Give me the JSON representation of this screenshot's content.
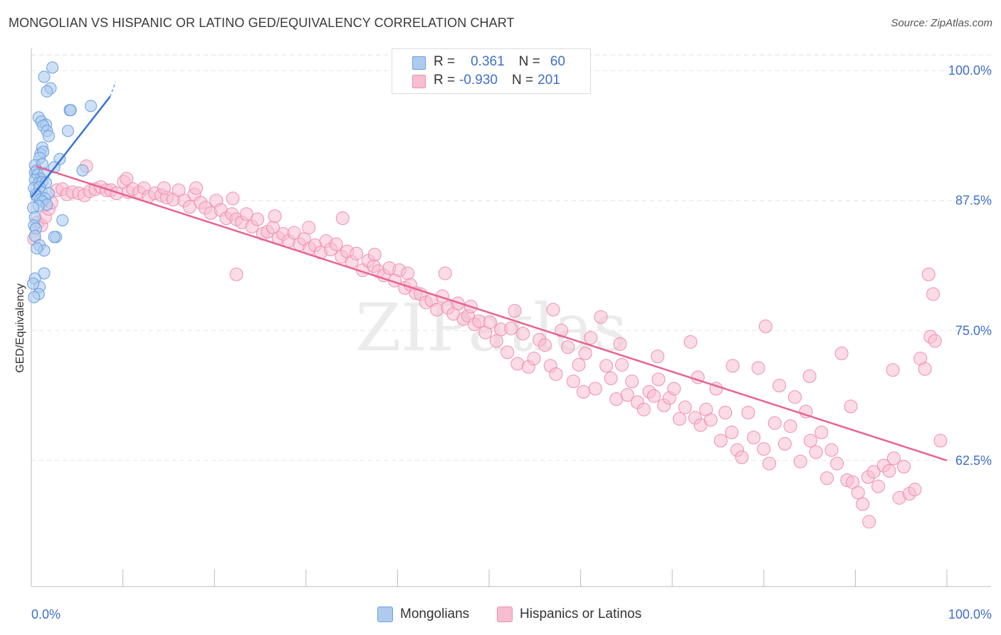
{
  "title": "MONGOLIAN VS HISPANIC OR LATINO GED/EQUIVALENCY CORRELATION CHART",
  "source": "Source: ZipAtlas.com",
  "watermark": "ZIPatlas",
  "colors": {
    "blue_fill": "#aecbef",
    "blue_stroke": "#6a9ee0",
    "blue_line": "#3574d4",
    "pink_fill": "#f7bdd0",
    "pink_stroke": "#ee8fb0",
    "pink_line": "#e8638f",
    "axis_text": "#3f6fc7",
    "grid": "#e3e3e3"
  },
  "legend": {
    "rows": [
      {
        "r_label": "R =",
        "r_value": "0.361",
        "n_label": "N =",
        "n_value": "60"
      },
      {
        "r_label": "R =",
        "r_value": "-0.930",
        "n_label": "N =",
        "n_value": "201"
      }
    ]
  },
  "bottom_legend": [
    "Mongolians",
    "Hispanics or Latinos"
  ],
  "chart_data": {
    "type": "scatter",
    "title": "MONGOLIAN VS HISPANIC OR LATINO GED/EQUIVALENCY CORRELATION CHART",
    "xlabel": "",
    "ylabel": "GED/Equivalency",
    "xlim": [
      0,
      100
    ],
    "ylim": [
      50.5,
      102
    ],
    "x_tick_labels": [
      "0.0%",
      "100.0%"
    ],
    "y_ticks": [
      62.5,
      75.0,
      87.5,
      100.0
    ],
    "y_tick_labels": [
      "62.5%",
      "75.0%",
      "87.5%",
      "100.0%"
    ],
    "grid": true,
    "series": [
      {
        "name": "Mongolians",
        "R": 0.361,
        "N": 60,
        "trend": {
          "x": [
            0,
            8.6
          ],
          "y": [
            87.8,
            97.5
          ],
          "dash_x": [
            8.6,
            9.2
          ],
          "dash_y": [
            97.5,
            98.9
          ]
        },
        "points": [
          [
            2.3,
            100.3
          ],
          [
            1.4,
            99.4
          ],
          [
            2.1,
            98.3
          ],
          [
            1.7,
            98.0
          ],
          [
            6.5,
            96.6
          ],
          [
            4.2,
            96.2
          ],
          [
            4.3,
            96.2
          ],
          [
            0.8,
            95.5
          ],
          [
            1.1,
            95.1
          ],
          [
            1.6,
            94.8
          ],
          [
            1.3,
            94.7
          ],
          [
            4.0,
            94.2
          ],
          [
            1.7,
            94.2
          ],
          [
            1.9,
            93.7
          ],
          [
            1.2,
            92.6
          ],
          [
            1.0,
            92.0
          ],
          [
            1.3,
            92.2
          ],
          [
            0.9,
            91.6
          ],
          [
            3.1,
            91.5
          ],
          [
            0.4,
            90.9
          ],
          [
            1.2,
            91.0
          ],
          [
            2.5,
            90.7
          ],
          [
            5.6,
            90.4
          ],
          [
            0.4,
            90.2
          ],
          [
            0.6,
            90.4
          ],
          [
            0.7,
            90.0
          ],
          [
            1.4,
            90.1
          ],
          [
            1.0,
            89.6
          ],
          [
            0.4,
            89.5
          ],
          [
            0.8,
            89.2
          ],
          [
            1.2,
            89.3
          ],
          [
            1.6,
            89.2
          ],
          [
            0.3,
            88.7
          ],
          [
            0.9,
            88.8
          ],
          [
            1.1,
            88.3
          ],
          [
            0.5,
            88.1
          ],
          [
            1.9,
            88.2
          ],
          [
            0.6,
            87.9
          ],
          [
            1.0,
            87.6
          ],
          [
            1.5,
            87.7
          ],
          [
            1.2,
            87.4
          ],
          [
            1.7,
            87.1
          ],
          [
            0.8,
            87.0
          ],
          [
            0.2,
            86.8
          ],
          [
            0.4,
            85.9
          ],
          [
            3.4,
            85.6
          ],
          [
            0.3,
            85.1
          ],
          [
            0.5,
            84.8
          ],
          [
            0.4,
            84.1
          ],
          [
            2.7,
            84.0
          ],
          [
            2.5,
            84.0
          ],
          [
            0.9,
            83.2
          ],
          [
            1.4,
            82.7
          ],
          [
            0.6,
            82.9
          ],
          [
            1.4,
            80.5
          ],
          [
            0.4,
            80.0
          ],
          [
            0.9,
            79.2
          ],
          [
            0.8,
            78.5
          ],
          [
            0.3,
            78.2
          ],
          [
            0.2,
            79.5
          ]
        ]
      },
      {
        "name": "Hispanics or Latinos",
        "R": -0.93,
        "N": 201,
        "trend": {
          "x": [
            0.5,
            100
          ],
          "y": [
            90.8,
            62.5
          ]
        },
        "points": [
          [
            0.3,
            83.8
          ],
          [
            0.7,
            85.4
          ],
          [
            1.1,
            85.1
          ],
          [
            1.5,
            85.9
          ],
          [
            1.9,
            86.7
          ],
          [
            2.2,
            87.3
          ],
          [
            2.8,
            88.5
          ],
          [
            3.4,
            88.6
          ],
          [
            3.9,
            88.1
          ],
          [
            4.5,
            88.3
          ],
          [
            5.2,
            88.2
          ],
          [
            5.8,
            88.0
          ],
          [
            6.4,
            88.4
          ],
          [
            7.0,
            88.6
          ],
          [
            7.6,
            88.8
          ],
          [
            8.2,
            88.5
          ],
          [
            8.7,
            88.5
          ],
          [
            9.3,
            88.2
          ],
          [
            10.1,
            89.3
          ],
          [
            10.6,
            88.3
          ],
          [
            11.1,
            88.6
          ],
          [
            11.8,
            88.3
          ],
          [
            12.3,
            88.7
          ],
          [
            12.8,
            87.9
          ],
          [
            13.5,
            88.2
          ],
          [
            14.2,
            88.0
          ],
          [
            14.8,
            87.8
          ],
          [
            15.5,
            87.6
          ],
          [
            16.1,
            88.5
          ],
          [
            16.7,
            87.5
          ],
          [
            17.3,
            86.9
          ],
          [
            17.8,
            88.1
          ],
          [
            18.5,
            87.3
          ],
          [
            19.0,
            86.8
          ],
          [
            19.6,
            86.3
          ],
          [
            20.2,
            87.5
          ],
          [
            20.7,
            86.6
          ],
          [
            21.3,
            85.8
          ],
          [
            21.9,
            86.2
          ],
          [
            22.4,
            85.7
          ],
          [
            23.0,
            85.4
          ],
          [
            23.5,
            86.2
          ],
          [
            24.1,
            85.0
          ],
          [
            24.7,
            85.7
          ],
          [
            25.3,
            84.3
          ],
          [
            25.8,
            84.5
          ],
          [
            26.4,
            84.9
          ],
          [
            27.0,
            83.9
          ],
          [
            27.5,
            84.3
          ],
          [
            28.1,
            83.6
          ],
          [
            28.7,
            84.4
          ],
          [
            29.3,
            83.3
          ],
          [
            29.8,
            83.8
          ],
          [
            30.4,
            82.9
          ],
          [
            31.0,
            83.2
          ],
          [
            31.6,
            82.5
          ],
          [
            32.2,
            83.6
          ],
          [
            32.7,
            82.8
          ],
          [
            33.3,
            83.3
          ],
          [
            33.9,
            82.1
          ],
          [
            34.5,
            82.6
          ],
          [
            35.0,
            81.6
          ],
          [
            35.5,
            82.4
          ],
          [
            36.2,
            80.8
          ],
          [
            36.8,
            81.7
          ],
          [
            37.4,
            81.2
          ],
          [
            37.9,
            80.7
          ],
          [
            38.5,
            80.3
          ],
          [
            39.1,
            81.0
          ],
          [
            39.7,
            79.8
          ],
          [
            40.2,
            80.8
          ],
          [
            40.8,
            79.1
          ],
          [
            41.4,
            79.4
          ],
          [
            42.0,
            78.6
          ],
          [
            42.5,
            78.5
          ],
          [
            43.1,
            77.7
          ],
          [
            43.7,
            77.9
          ],
          [
            44.3,
            77.0
          ],
          [
            44.9,
            78.3
          ],
          [
            45.5,
            77.2
          ],
          [
            46.1,
            76.6
          ],
          [
            46.6,
            77.6
          ],
          [
            47.2,
            76.1
          ],
          [
            47.7,
            76.4
          ],
          [
            48.4,
            75.6
          ],
          [
            48.9,
            75.9
          ],
          [
            49.6,
            74.8
          ],
          [
            50.1,
            75.8
          ],
          [
            50.8,
            74.0
          ],
          [
            51.3,
            75.1
          ],
          [
            52.0,
            72.9
          ],
          [
            52.4,
            75.2
          ],
          [
            53.1,
            71.8
          ],
          [
            53.7,
            74.7
          ],
          [
            54.3,
            71.5
          ],
          [
            54.9,
            72.3
          ],
          [
            55.5,
            74.1
          ],
          [
            56.1,
            73.6
          ],
          [
            56.7,
            71.6
          ],
          [
            57.3,
            70.8
          ],
          [
            57.9,
            75.0
          ],
          [
            58.6,
            73.4
          ],
          [
            59.2,
            70.1
          ],
          [
            59.8,
            71.7
          ],
          [
            60.3,
            69.1
          ],
          [
            61.1,
            74.3
          ],
          [
            61.6,
            69.4
          ],
          [
            62.2,
            76.3
          ],
          [
            62.8,
            71.6
          ],
          [
            63.3,
            70.4
          ],
          [
            63.9,
            68.4
          ],
          [
            64.5,
            71.7
          ],
          [
            65.1,
            68.8
          ],
          [
            65.6,
            70.1
          ],
          [
            66.2,
            68.1
          ],
          [
            66.9,
            67.4
          ],
          [
            67.5,
            69.1
          ],
          [
            68.0,
            68.7
          ],
          [
            68.5,
            70.3
          ],
          [
            69.1,
            67.8
          ],
          [
            69.7,
            68.5
          ],
          [
            70.2,
            69.4
          ],
          [
            70.8,
            66.5
          ],
          [
            71.4,
            67.6
          ],
          [
            72.0,
            73.9
          ],
          [
            72.5,
            66.6
          ],
          [
            73.1,
            65.9
          ],
          [
            73.7,
            67.4
          ],
          [
            74.2,
            66.4
          ],
          [
            74.8,
            69.4
          ],
          [
            75.3,
            64.4
          ],
          [
            75.8,
            67.1
          ],
          [
            76.5,
            65.2
          ],
          [
            77.1,
            63.5
          ],
          [
            77.6,
            62.8
          ],
          [
            78.3,
            67.1
          ],
          [
            78.9,
            64.7
          ],
          [
            79.4,
            71.4
          ],
          [
            80.0,
            63.6
          ],
          [
            80.6,
            62.2
          ],
          [
            81.2,
            66.1
          ],
          [
            81.7,
            69.7
          ],
          [
            82.3,
            64.1
          ],
          [
            82.9,
            65.8
          ],
          [
            83.4,
            68.6
          ],
          [
            84.0,
            62.4
          ],
          [
            84.6,
            67.2
          ],
          [
            85.1,
            64.4
          ],
          [
            85.7,
            63.3
          ],
          [
            86.3,
            65.2
          ],
          [
            86.9,
            60.8
          ],
          [
            87.4,
            63.5
          ],
          [
            88.0,
            62.2
          ],
          [
            88.5,
            72.8
          ],
          [
            89.1,
            60.6
          ],
          [
            89.7,
            60.4
          ],
          [
            90.3,
            59.4
          ],
          [
            90.8,
            58.3
          ],
          [
            91.4,
            60.9
          ],
          [
            92.0,
            61.4
          ],
          [
            92.5,
            60.0
          ],
          [
            93.1,
            62.0
          ],
          [
            93.7,
            61.5
          ],
          [
            94.2,
            62.7
          ],
          [
            94.8,
            58.9
          ],
          [
            95.3,
            61.9
          ],
          [
            95.9,
            59.3
          ],
          [
            96.5,
            59.7
          ],
          [
            97.1,
            72.3
          ],
          [
            97.6,
            71.3
          ],
          [
            98.2,
            74.4
          ],
          [
            98.7,
            74.0
          ],
          [
            99.3,
            64.4
          ],
          [
            6.0,
            90.8
          ],
          [
            10.4,
            89.6
          ],
          [
            14.5,
            88.7
          ],
          [
            18.0,
            88.7
          ],
          [
            22.0,
            87.7
          ],
          [
            26.6,
            86.0
          ],
          [
            30.3,
            84.9
          ],
          [
            34.0,
            85.8
          ],
          [
            37.5,
            82.3
          ],
          [
            41.1,
            80.5
          ],
          [
            45.2,
            80.5
          ],
          [
            48.0,
            77.3
          ],
          [
            52.8,
            76.9
          ],
          [
            57.0,
            77.0
          ],
          [
            60.5,
            72.8
          ],
          [
            64.3,
            73.7
          ],
          [
            68.4,
            72.5
          ],
          [
            72.8,
            70.5
          ],
          [
            76.6,
            71.6
          ],
          [
            80.2,
            75.4
          ],
          [
            85.0,
            70.6
          ],
          [
            89.5,
            67.7
          ],
          [
            94.1,
            71.2
          ],
          [
            98.5,
            78.5
          ],
          [
            98.0,
            80.4
          ],
          [
            91.5,
            56.6
          ],
          [
            22.4,
            80.4
          ]
        ]
      }
    ]
  }
}
